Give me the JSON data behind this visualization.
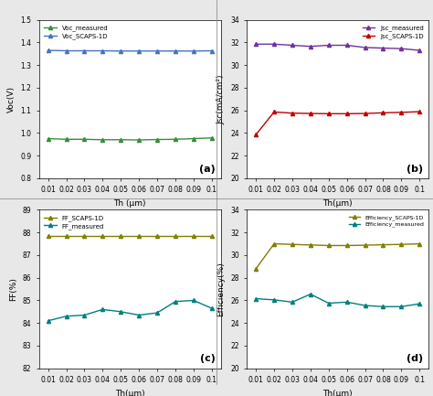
{
  "th": [
    0.01,
    0.02,
    0.03,
    0.04,
    0.05,
    0.06,
    0.07,
    0.08,
    0.09,
    0.1
  ],
  "voc_measured": [
    0.975,
    0.972,
    0.972,
    0.97,
    0.97,
    0.969,
    0.971,
    0.972,
    0.975,
    0.978
  ],
  "voc_scaps": [
    1.365,
    1.363,
    1.363,
    1.363,
    1.362,
    1.362,
    1.362,
    1.362,
    1.362,
    1.363
  ],
  "voc_ylim": [
    0.8,
    1.5
  ],
  "voc_yticks": [
    0.8,
    0.9,
    1.0,
    1.1,
    1.2,
    1.3,
    1.4,
    1.5
  ],
  "voc_ylabel": "Voc(V)",
  "voc_xlabel": "Th (μm)",
  "voc_label_a": "(a)",
  "jsc_measured": [
    31.85,
    31.85,
    31.75,
    31.65,
    31.75,
    31.75,
    31.55,
    31.5,
    31.45,
    31.3
  ],
  "jsc_scaps": [
    23.85,
    25.85,
    25.75,
    25.72,
    25.7,
    25.7,
    25.72,
    25.78,
    25.82,
    25.88
  ],
  "jsc_ylim": [
    20,
    34
  ],
  "jsc_yticks": [
    20,
    22,
    24,
    26,
    28,
    30,
    32,
    34
  ],
  "jsc_ylabel": "Jsc(mA/cm²)",
  "jsc_xlabel": "Th(μm)",
  "jsc_label_b": "(b)",
  "ff_scaps": [
    87.85,
    87.85,
    87.85,
    87.85,
    87.85,
    87.85,
    87.85,
    87.85,
    87.85,
    87.85
  ],
  "ff_measured": [
    84.1,
    84.3,
    84.35,
    84.6,
    84.5,
    84.35,
    84.45,
    84.95,
    85.0,
    84.65
  ],
  "ff_ylim": [
    82,
    89
  ],
  "ff_yticks": [
    82,
    83,
    84,
    85,
    86,
    87,
    88,
    89
  ],
  "ff_ylabel": "FF(%)",
  "ff_xlabel": "Th(μm)",
  "ff_label_c": "(c)",
  "eff_scaps": [
    28.8,
    31.0,
    30.95,
    30.9,
    30.85,
    30.85,
    30.88,
    30.92,
    30.95,
    31.0
  ],
  "eff_measured": [
    26.15,
    26.05,
    25.85,
    26.55,
    25.75,
    25.85,
    25.55,
    25.45,
    25.45,
    25.7
  ],
  "eff_ylim": [
    20,
    34
  ],
  "eff_yticks": [
    20,
    22,
    24,
    26,
    28,
    30,
    32,
    34
  ],
  "eff_ylabel": "Efficiency(%)",
  "eff_xlabel": "Th(μm)",
  "eff_label_d": "(d)",
  "color_green": "#3a8c3a",
  "color_blue": "#4472c4",
  "color_purple": "#7030a0",
  "color_red": "#c00000",
  "color_olive": "#7f7f00",
  "color_teal": "#008080",
  "bg_color": "#ffffff",
  "outer_bg": "#e8e8e8",
  "marker": "^",
  "markersize": 3,
  "linewidth": 1.0,
  "xtick_labels": [
    "0.01",
    "0.02",
    "0.03",
    "0.04",
    "0.05",
    "0.06",
    "0.07",
    "0.08",
    "0.09",
    "0.1"
  ]
}
